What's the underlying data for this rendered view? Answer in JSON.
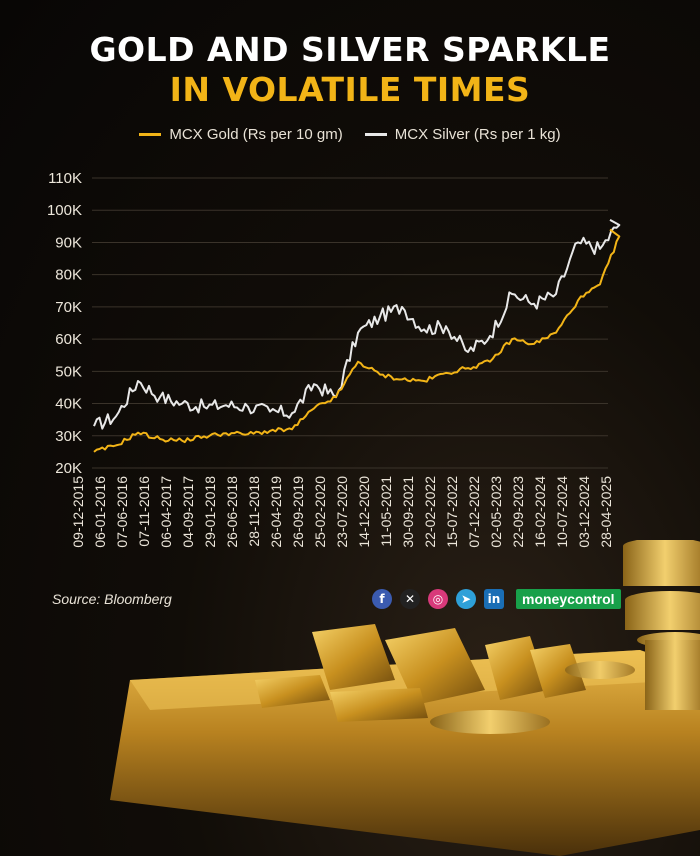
{
  "header": {
    "title_line1": "GOLD AND SILVER SPARKLE",
    "title_line2": "IN VOLATILE TIMES"
  },
  "legend": [
    {
      "label": "MCX Gold (Rs per 10 gm)",
      "color": "#f2b417"
    },
    {
      "label": "MCX Silver (Rs per 1 kg)",
      "color": "#e8e8e8"
    }
  ],
  "footer": {
    "source": "Source: Bloomberg",
    "brand": "moneycontrol",
    "social_icons": [
      "facebook-icon",
      "x-icon",
      "instagram-icon",
      "telegram-icon",
      "linkedin-icon"
    ]
  },
  "chart_data": {
    "type": "line",
    "title": "GOLD AND SILVER SPARKLE IN VOLATILE TIMES",
    "y_ticks": [
      "20K",
      "30K",
      "40K",
      "50K",
      "60K",
      "70K",
      "80K",
      "90K",
      "100K",
      "110K"
    ],
    "ylim": [
      20000,
      110000
    ],
    "x_ticks": [
      "09-12-2015",
      "06-01-2016",
      "07-06-2016",
      "07-11-2016",
      "06-04-2017",
      "04-09-2017",
      "29-01-2018",
      "26-06-2018",
      "28-11-2018",
      "26-04-2019",
      "26-09-2019",
      "25-02-2020",
      "23-07-2020",
      "14-12-2020",
      "11-05-2021",
      "30-09-2021",
      "22-02-2022",
      "15-07-2022",
      "07-12-2022",
      "02-05-2023",
      "22-09-2023",
      "16-02-2024",
      "10-07-2024",
      "03-12-2024",
      "28-04-2025"
    ],
    "grid": true,
    "legend_position": "top",
    "series": [
      {
        "name": "MCX Gold (Rs per 10 gm)",
        "color": "#f2b417",
        "x": [
          "09-12-2015",
          "06-01-2016",
          "07-06-2016",
          "07-11-2016",
          "06-04-2017",
          "04-09-2017",
          "29-01-2018",
          "26-06-2018",
          "28-11-2018",
          "26-04-2019",
          "26-09-2019",
          "25-02-2020",
          "23-07-2020",
          "14-12-2020",
          "11-05-2021",
          "30-09-2021",
          "22-02-2022",
          "15-07-2022",
          "07-12-2022",
          "02-05-2023",
          "22-09-2023",
          "16-02-2024",
          "10-07-2024",
          "03-12-2024",
          "28-04-2025"
        ],
        "values": [
          25000,
          27000,
          31000,
          29000,
          28500,
          29800,
          30800,
          30500,
          31500,
          32000,
          38500,
          42000,
          53000,
          49000,
          47500,
          47000,
          49500,
          51000,
          53000,
          60000,
          58500,
          62000,
          72000,
          77000,
          94000
        ]
      },
      {
        "name": "MCX Silver (Rs per 1 kg)",
        "color": "#e8e8e8",
        "x": [
          "09-12-2015",
          "06-01-2016",
          "07-06-2016",
          "07-11-2016",
          "06-04-2017",
          "04-09-2017",
          "29-01-2018",
          "26-06-2018",
          "28-11-2018",
          "26-04-2019",
          "26-09-2019",
          "25-02-2020",
          "23-07-2020",
          "14-12-2020",
          "11-05-2021",
          "30-09-2021",
          "22-02-2022",
          "15-07-2022",
          "07-12-2022",
          "02-05-2023",
          "22-09-2023",
          "16-02-2024",
          "10-07-2024",
          "03-12-2024",
          "28-04-2025"
        ],
        "values": [
          33000,
          36000,
          47000,
          42000,
          40000,
          39000,
          39500,
          39000,
          37500,
          37000,
          46000,
          42000,
          62000,
          67000,
          70000,
          63000,
          64000,
          56000,
          61000,
          74000,
          71000,
          74000,
          90000,
          88000,
          97000
        ]
      }
    ]
  }
}
